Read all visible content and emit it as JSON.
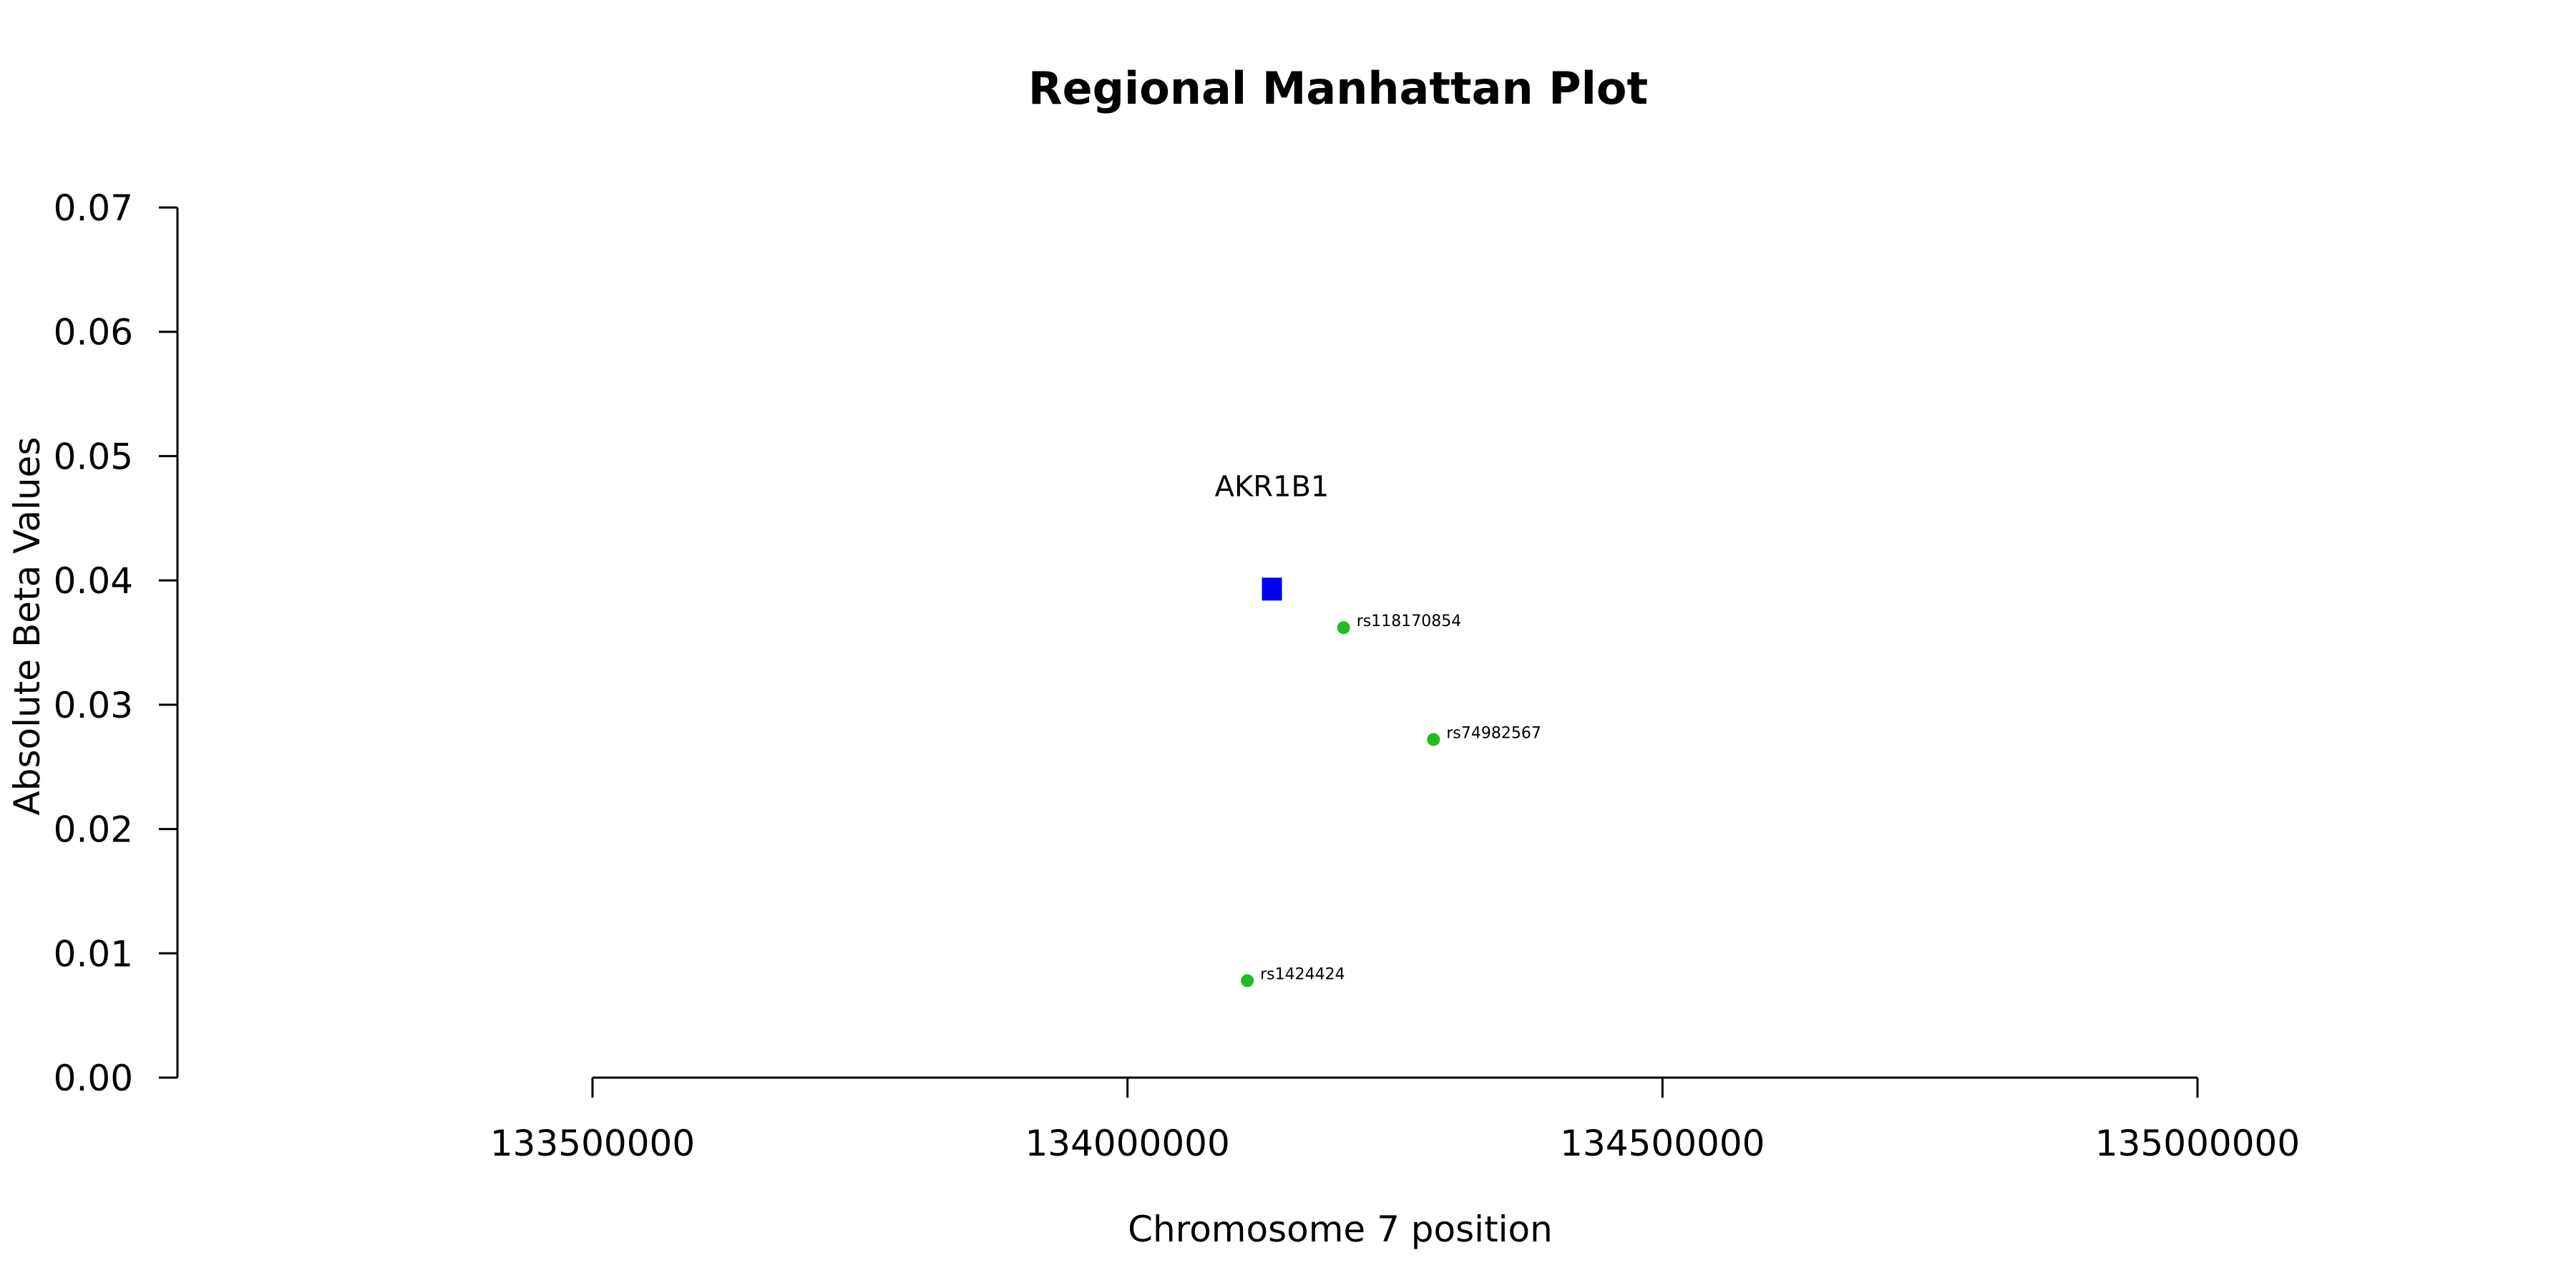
{
  "chart_data": {
    "type": "scatter",
    "title": "Regional Manhattan Plot",
    "xlabel": "Chromosome 7 position",
    "ylabel": "Absolute Beta Values",
    "xlim": [
      133500000,
      135000000
    ],
    "ylim": [
      0,
      0.07
    ],
    "x_ticks": [
      "133500000",
      "134000000",
      "134500000",
      "135000000"
    ],
    "y_ticks": [
      "0.00",
      "0.01",
      "0.02",
      "0.03",
      "0.04",
      "0.05",
      "0.06",
      "0.07"
    ],
    "gene": {
      "name": "AKR1B1",
      "x": 134135000,
      "y": 0.0393,
      "color": "#0000ee",
      "marker": "square"
    },
    "snps": [
      {
        "id": "rs118170854",
        "x": 134202000,
        "y": 0.0362,
        "color": "#22bb22"
      },
      {
        "id": "rs74982567",
        "x": 134286000,
        "y": 0.0272,
        "color": "#22bb22"
      },
      {
        "id": "rs1424424",
        "x": 134112000,
        "y": 0.0078,
        "color": "#22bb22"
      }
    ]
  }
}
